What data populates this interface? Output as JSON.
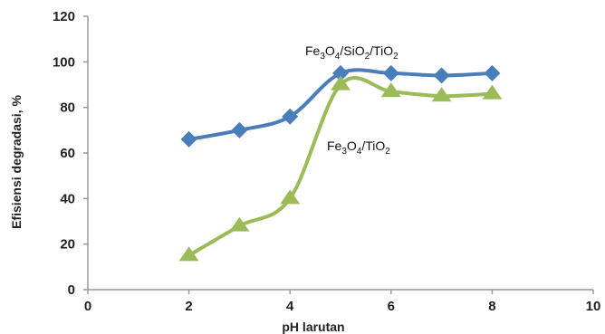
{
  "chart_data": {
    "type": "line",
    "xlabel": "pH larutan",
    "ylabel": "Efisiensi degradasi, %",
    "xlim": [
      0,
      10
    ],
    "ylim": [
      0,
      120
    ],
    "x_ticks": [
      "0",
      "2",
      "4",
      "6",
      "8",
      "10"
    ],
    "y_ticks": [
      "0",
      "20",
      "40",
      "60",
      "80",
      "100",
      "120"
    ],
    "grid": false,
    "legend": "none",
    "series": [
      {
        "name": "Fe3O4/SiO2/TiO2",
        "label_parts": [
          {
            "t": "Fe"
          },
          {
            "t": "3",
            "sub": true
          },
          {
            "t": "O"
          },
          {
            "t": "4",
            "sub": true
          },
          {
            "t": "/SiO"
          },
          {
            "t": "2",
            "sub": true
          },
          {
            "t": "/TiO"
          },
          {
            "t": "2",
            "sub": true
          }
        ],
        "color": "#4a7ebb",
        "marker": "diamond",
        "x": [
          2,
          3,
          4,
          5,
          6,
          7,
          8
        ],
        "y": [
          66,
          70,
          76,
          95,
          95,
          94,
          95
        ]
      },
      {
        "name": "Fe3O4/TiO2",
        "label_parts": [
          {
            "t": "Fe"
          },
          {
            "t": "3",
            "sub": true
          },
          {
            "t": "O"
          },
          {
            "t": "4",
            "sub": true
          },
          {
            "t": "/TiO"
          },
          {
            "t": "2",
            "sub": true
          }
        ],
        "color": "#9bbb59",
        "marker": "triangle",
        "x": [
          2,
          3,
          4,
          5,
          6,
          7,
          8
        ],
        "y": [
          15,
          28,
          40,
          90,
          87,
          85,
          86
        ]
      }
    ]
  }
}
